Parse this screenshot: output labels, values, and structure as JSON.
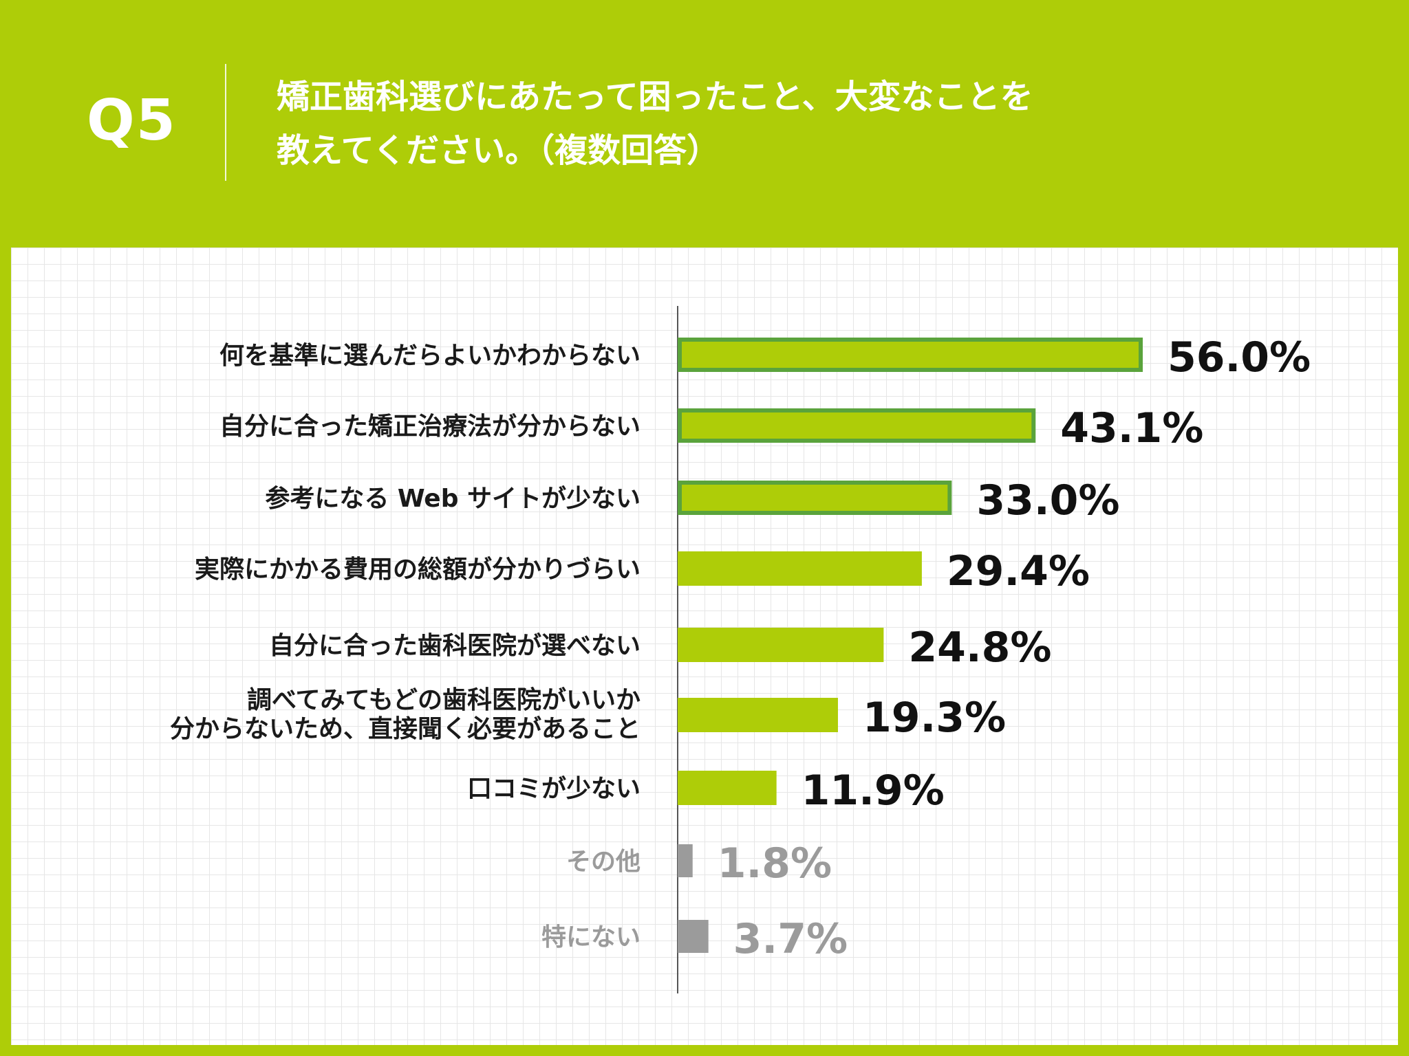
{
  "header": {
    "q_label": "Q5",
    "question_line1": "矯正歯科選びにあたって困ったこと、大変なことを",
    "question_line2": "教えてください。（複数回答）"
  },
  "colors": {
    "background": "#aecd08",
    "bar": "#aecd08",
    "bar_highlight_border": "#5aa33c",
    "bar_muted": "#9b9b9b",
    "label_text": "#1a1a1a",
    "muted_text": "#9b9b9b",
    "axis": "#555555"
  },
  "chart_data": {
    "type": "bar",
    "orientation": "horizontal",
    "unit": "%",
    "xlim": [
      0,
      56
    ],
    "categories": [
      [
        "何を基準に選んだらよいかわからない"
      ],
      [
        "自分に合った矯正治療法が分からない"
      ],
      [
        "参考になる Web サイトが少ない"
      ],
      [
        "実際にかかる費用の総額が分かりづらい"
      ],
      [
        "自分に合った歯科医院が選べない"
      ],
      [
        "調べてみてもどの歯科医院がいいか",
        "分からないため、直接聞く必要があること"
      ],
      [
        "口コミが少ない"
      ],
      [
        "その他"
      ],
      [
        "特にない"
      ]
    ],
    "values": [
      56.0,
      43.1,
      33.0,
      29.4,
      24.8,
      19.3,
      11.9,
      1.8,
      3.7
    ],
    "value_labels": [
      "56.0%",
      "43.1%",
      "33.0%",
      "29.4%",
      "24.8%",
      "19.3%",
      "11.9%",
      "1.8%",
      "3.7%"
    ],
    "highlighted": [
      true,
      true,
      true,
      false,
      false,
      false,
      false,
      false,
      false
    ],
    "muted": [
      false,
      false,
      false,
      false,
      false,
      false,
      false,
      true,
      true
    ]
  }
}
